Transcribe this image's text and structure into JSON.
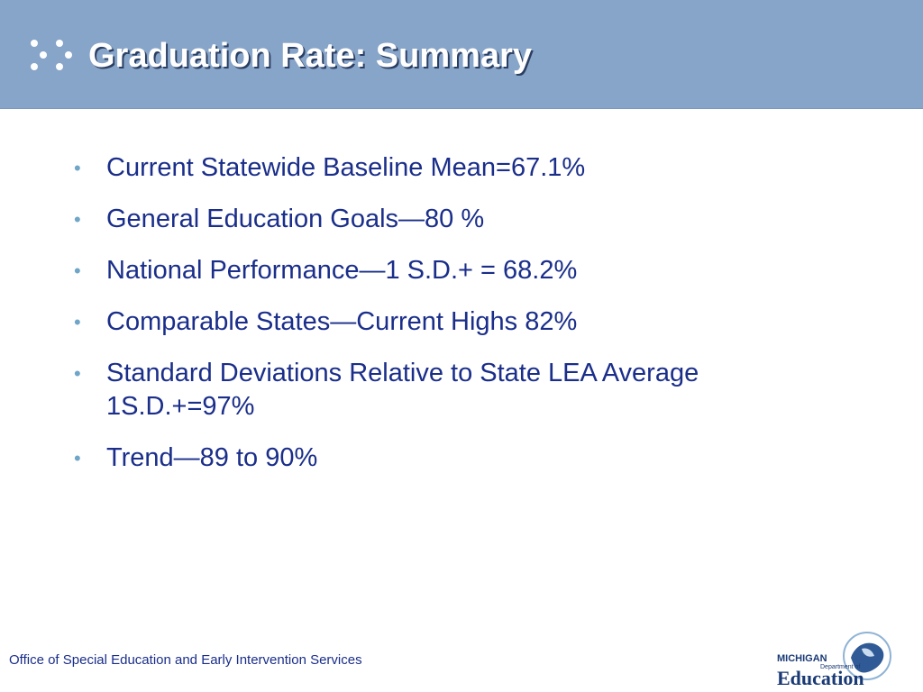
{
  "header": {
    "title": "Graduation Rate: Summary",
    "background_color": "#87a4c9",
    "title_color": "#ffffff"
  },
  "bullets": [
    "Current Statewide Baseline Mean=67.1%",
    "General Education Goals—80 %",
    "National Performance—1 S.D.+ = 68.2%",
    "Comparable States—Current Highs 82%",
    "Standard Deviations Relative to State LEA Average 1S.D.+=97%",
    "Trend—89 to 90%"
  ],
  "bullet_text_color": "#1a2e8a",
  "bullet_mark_color": "#6fa6c8",
  "footer": {
    "office": "Office of Special Education and Early Intervention Services"
  },
  "logo": {
    "icon": "michigan-map-icon",
    "line1": "MICHIGAN",
    "line2": "Department of",
    "line3": "Education"
  }
}
